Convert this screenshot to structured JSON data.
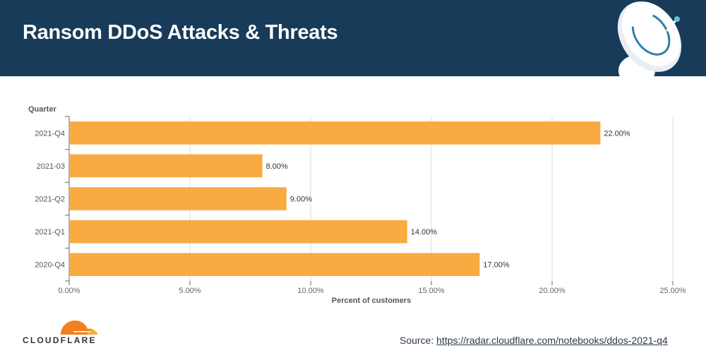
{
  "header": {
    "title": "Ransom DDoS Attacks & Threats",
    "icon": "satellite-dish-icon"
  },
  "colors": {
    "header_bg": "#173b59",
    "bar": "#f9ab41",
    "grid": "#dddddd",
    "axis": "#666666"
  },
  "chart_data": {
    "type": "bar",
    "orientation": "horizontal",
    "title": "",
    "xlabel": "Percent of customers",
    "ylabel": "Quarter",
    "categories": [
      "2021-Q4",
      "2021-03",
      "2021-Q2",
      "2021-Q1",
      "2020-Q4"
    ],
    "values": [
      22,
      8,
      9,
      14,
      17
    ],
    "value_labels": [
      "22.00%",
      "8.00%",
      "9.00%",
      "14.00%",
      "17.00%"
    ],
    "xlim": [
      0,
      25
    ],
    "xticks": [
      0,
      5,
      10,
      15,
      20,
      25
    ],
    "xtick_labels": [
      "0.00%",
      "5.00%",
      "10.00%",
      "15.00%",
      "20.00%",
      "25.00%"
    ],
    "grid": true,
    "legend": "none"
  },
  "footer": {
    "logo_text": "CLOUDFLARE",
    "source_label": "Source: ",
    "source_link": "https://radar.cloudflare.com/notebooks/ddos-2021-q4"
  }
}
